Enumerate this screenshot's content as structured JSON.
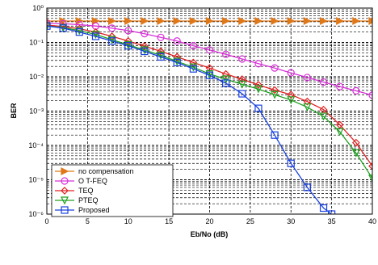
{
  "chart_data": {
    "type": "line",
    "xlabel": "Eb/No (dB)",
    "ylabel": "BER",
    "log_y": true,
    "xlim": [
      0,
      40
    ],
    "ylim": [
      1e-06,
      1
    ],
    "x_ticks": [
      0,
      5,
      10,
      15,
      20,
      25,
      30,
      35,
      40
    ],
    "x_tick_labels": [
      "0",
      "5",
      "10",
      "15",
      "20",
      "25",
      "30",
      "35",
      "40"
    ],
    "y_ticks": [
      1,
      0.1,
      0.01,
      0.001,
      0.0001,
      1e-05,
      1e-06
    ],
    "y_tick_labels": [
      "10⁰",
      "10⁻¹",
      "10⁻²",
      "10⁻³",
      "10⁻⁴",
      "10⁻⁵",
      "10⁻⁶"
    ],
    "grid": true,
    "legend_position": "bottom-left",
    "series": [
      {
        "name": "no compensation",
        "color": "#e07818",
        "marker": "triangle-right",
        "x": [
          0,
          2,
          4,
          6,
          8,
          10,
          12,
          14,
          16,
          18,
          20,
          22,
          24,
          26,
          28,
          30,
          32,
          34,
          36,
          38,
          40
        ],
        "values": [
          0.42,
          0.42,
          0.42,
          0.42,
          0.42,
          0.42,
          0.42,
          0.42,
          0.42,
          0.42,
          0.42,
          0.42,
          0.42,
          0.42,
          0.42,
          0.42,
          0.42,
          0.42,
          0.42,
          0.42,
          0.42
        ]
      },
      {
        "name": "O T-FEQ",
        "color": "#d830d8",
        "marker": "circle",
        "x": [
          0,
          2,
          4,
          6,
          8,
          10,
          12,
          14,
          16,
          18,
          20,
          22,
          24,
          26,
          28,
          30,
          32,
          34,
          36,
          38,
          40
        ],
        "values": [
          0.36,
          0.35,
          0.33,
          0.3,
          0.26,
          0.22,
          0.18,
          0.14,
          0.11,
          0.08,
          0.06,
          0.045,
          0.033,
          0.024,
          0.018,
          0.013,
          0.0095,
          0.007,
          0.0052,
          0.0039,
          0.0029
        ]
      },
      {
        "name": "TEQ",
        "color": "#e02020",
        "marker": "diamond",
        "x": [
          0,
          2,
          4,
          6,
          8,
          10,
          12,
          14,
          16,
          18,
          20,
          22,
          24,
          26,
          28,
          30,
          32,
          34,
          36,
          38,
          40
        ],
        "values": [
          0.32,
          0.29,
          0.25,
          0.2,
          0.15,
          0.11,
          0.078,
          0.055,
          0.038,
          0.026,
          0.018,
          0.012,
          0.0085,
          0.0058,
          0.0041,
          0.003,
          0.0019,
          0.0011,
          0.0004,
          0.00012,
          2.5e-05
        ]
      },
      {
        "name": "PTEQ",
        "color": "#20a020",
        "marker": "triangle-down",
        "x": [
          0,
          2,
          4,
          6,
          8,
          10,
          12,
          14,
          16,
          18,
          20,
          22,
          24,
          26,
          28,
          30,
          32,
          34,
          36,
          38,
          40
        ],
        "values": [
          0.3,
          0.27,
          0.22,
          0.17,
          0.12,
          0.085,
          0.06,
          0.042,
          0.028,
          0.019,
          0.012,
          0.0085,
          0.006,
          0.0044,
          0.003,
          0.0021,
          0.0013,
          0.0007,
          0.00025,
          6e-05,
          1.1e-05
        ]
      },
      {
        "name": "Proposed",
        "color": "#1840e0",
        "marker": "square",
        "x": [
          0,
          2,
          4,
          6,
          8,
          10,
          12,
          14,
          16,
          18,
          20,
          22,
          24,
          26,
          28,
          30,
          32,
          34,
          35
        ],
        "values": [
          0.3,
          0.26,
          0.2,
          0.15,
          0.11,
          0.08,
          0.055,
          0.038,
          0.026,
          0.017,
          0.011,
          0.0065,
          0.0032,
          0.0012,
          0.0002,
          3e-05,
          6e-06,
          1.5e-06,
          1e-06
        ]
      }
    ]
  }
}
